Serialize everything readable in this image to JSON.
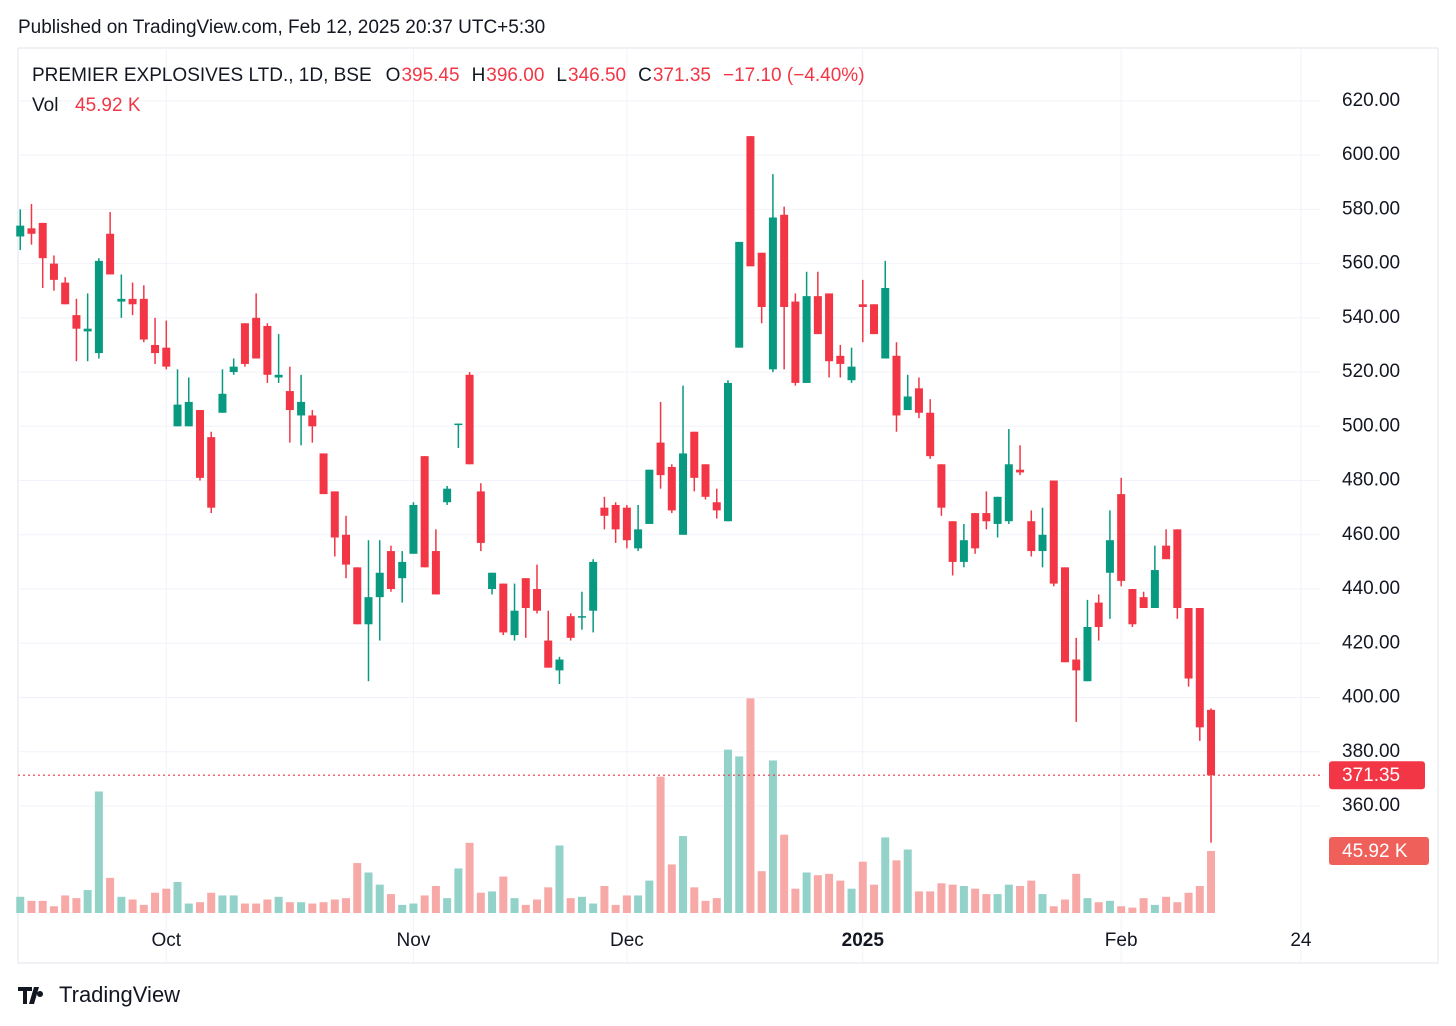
{
  "published": "Published on TradingView.com, Feb 12, 2025 20:37 UTC+5:30",
  "brand": "TradingView",
  "chart_data": {
    "type": "candlestick",
    "title": "PREMIER EXPLOSIVES LTD., 1D, BSE",
    "ohlc_legend": [
      {
        "key": "O",
        "value": "395.45"
      },
      {
        "key": "H",
        "value": "396.00"
      },
      {
        "key": "L",
        "value": "346.50"
      },
      {
        "key": "C",
        "value": "371.35"
      }
    ],
    "change": "−17.10 (−4.40%)",
    "volume_name": "Vol",
    "volume_label": "45.92 K",
    "last_price": 371.35,
    "up_color": "#089981",
    "down_color": "#f23645",
    "volume_up_color": "#92d2c8",
    "volume_down_color": "#f7a9a7",
    "grid": true,
    "xlim": [
      -0.2,
      115.7
    ],
    "xticks": [
      {
        "value": 13,
        "label": "Oct"
      },
      {
        "value": 35,
        "label": "Nov"
      },
      {
        "value": 54,
        "label": "Dec"
      },
      {
        "value": 75,
        "label": "2025"
      },
      {
        "value": 98,
        "label": "Feb"
      },
      {
        "value": 114,
        "label": "24"
      }
    ],
    "ylim": [
      302.1,
      639.5
    ],
    "yticks": [
      {
        "value": 620,
        "label": "620.00"
      },
      {
        "value": 600,
        "label": "600.00"
      },
      {
        "value": 580,
        "label": "580.00"
      },
      {
        "value": 560,
        "label": "560.00"
      },
      {
        "value": 540,
        "label": "540.00"
      },
      {
        "value": 520,
        "label": "520.00"
      },
      {
        "value": 500,
        "label": "500.00"
      },
      {
        "value": 480,
        "label": "480.00"
      },
      {
        "value": 460,
        "label": "460.00"
      },
      {
        "value": 440,
        "label": "440.00"
      },
      {
        "value": 420,
        "label": "420.00"
      },
      {
        "value": 400,
        "label": "400.00"
      },
      {
        "value": 380,
        "label": "380.00"
      },
      {
        "value": 360,
        "label": "360.00"
      }
    ],
    "vlim": [
      0,
      160
    ],
    "open": [
      570,
      573,
      575,
      560,
      553,
      541,
      535,
      527,
      571,
      546,
      547,
      547,
      530,
      529,
      500,
      500,
      506,
      496,
      505,
      520,
      538,
      540,
      537,
      518,
      513,
      504,
      504,
      490,
      476,
      460,
      448,
      427,
      437,
      454,
      444,
      453,
      489,
      454,
      472,
      501,
      519,
      476,
      440,
      442,
      423,
      444,
      440,
      421,
      410,
      430,
      430,
      432,
      470,
      471,
      470,
      455,
      464,
      494,
      485,
      460,
      498,
      486,
      472,
      465,
      529,
      607,
      564,
      521,
      578,
      546,
      516,
      548,
      549,
      526,
      517,
      545,
      545,
      525,
      526,
      506,
      514,
      505,
      486,
      465,
      450,
      468,
      468,
      464,
      465,
      484,
      465,
      454,
      480,
      448,
      414,
      406,
      435,
      446,
      475,
      440,
      437,
      433,
      456,
      462,
      433,
      433,
      395.45
    ],
    "high": [
      580,
      582,
      575,
      563,
      555,
      547,
      549,
      562,
      579,
      556,
      553,
      552,
      540,
      539,
      521,
      518,
      506,
      498,
      521,
      525,
      538,
      549,
      538,
      534,
      522,
      519,
      506,
      490,
      476,
      467,
      448,
      458,
      458,
      456,
      454,
      472,
      489,
      462,
      478,
      501,
      520,
      479,
      446,
      442,
      442,
      444,
      449,
      432,
      415,
      431,
      439,
      451,
      474,
      472,
      471,
      471,
      484,
      509,
      486,
      515,
      498,
      486,
      477,
      517,
      568,
      607,
      564,
      593,
      581,
      549,
      557,
      557,
      549,
      530,
      529,
      554,
      545,
      561,
      531,
      519,
      518,
      510,
      486,
      465,
      464,
      468,
      476,
      474,
      499,
      493,
      469,
      470,
      480,
      448,
      422,
      436,
      438,
      469,
      481,
      440,
      439,
      456,
      462,
      462,
      433,
      433,
      396
    ],
    "low": [
      565,
      567,
      551,
      550,
      545,
      524,
      524,
      525,
      556,
      540,
      541,
      531,
      523,
      521,
      500,
      500,
      480,
      468,
      505,
      519,
      522,
      525,
      516,
      516,
      494,
      493,
      494,
      475,
      452,
      444,
      427,
      406,
      421,
      439,
      435,
      453,
      448,
      438,
      471,
      492,
      486,
      454,
      438,
      423,
      421,
      422,
      431,
      411,
      405,
      421,
      425,
      424,
      462,
      457,
      455,
      454,
      464,
      477,
      468,
      460,
      476,
      473,
      466,
      465,
      529,
      559,
      538,
      520,
      521,
      515,
      516,
      534,
      518,
      518,
      516,
      531,
      534,
      525,
      498,
      506,
      503,
      488,
      467,
      445,
      448,
      453,
      462,
      459,
      464,
      482,
      452,
      448,
      441,
      413,
      391,
      406,
      421,
      429,
      441,
      426,
      433,
      433,
      451,
      429,
      404,
      384,
      346.5
    ],
    "close": [
      574,
      571,
      562,
      554,
      545,
      536,
      536,
      561,
      556,
      547,
      545,
      532,
      527,
      522,
      508,
      509,
      481,
      470,
      512,
      522,
      523,
      525,
      519,
      519,
      506,
      509,
      500,
      475,
      459,
      449,
      427,
      437,
      446,
      440,
      450,
      471,
      448,
      438,
      477,
      501,
      486,
      457,
      446,
      424,
      432,
      433,
      432,
      411,
      414,
      422,
      430,
      450,
      467,
      462,
      458,
      462,
      484,
      482,
      469,
      490,
      481,
      474,
      469,
      516,
      568,
      559,
      544,
      577,
      544,
      516,
      548,
      534,
      524,
      523,
      522,
      544,
      534,
      551,
      504,
      511,
      505,
      489,
      470,
      450,
      458,
      455,
      465,
      474,
      486,
      483,
      454,
      460,
      442,
      413,
      410,
      426,
      426,
      458,
      443,
      427,
      433,
      447,
      451,
      433,
      407,
      389,
      371.35
    ],
    "volume": [
      12,
      9,
      9,
      5,
      13,
      11,
      17,
      90,
      26,
      12,
      10,
      6,
      15,
      18,
      23,
      7,
      8,
      15,
      13,
      13,
      7,
      7,
      10,
      12,
      8,
      8,
      7,
      8,
      10,
      11,
      37,
      30,
      21,
      14,
      6,
      7,
      13,
      20,
      11,
      33,
      52,
      15,
      16,
      27,
      11,
      6,
      10,
      19,
      50,
      11,
      12,
      7,
      20,
      6,
      13,
      13,
      24,
      101,
      36,
      57,
      19,
      9,
      11,
      121,
      116,
      159,
      31,
      113,
      58,
      18,
      30,
      28,
      29,
      24,
      18,
      38,
      21,
      56,
      39,
      47,
      16,
      16,
      22,
      21,
      20,
      18,
      14,
      14,
      21,
      20,
      24,
      14,
      5,
      10,
      29,
      11,
      8,
      9,
      5,
      4,
      11,
      6,
      12,
      8,
      15,
      20,
      45.92
    ]
  }
}
